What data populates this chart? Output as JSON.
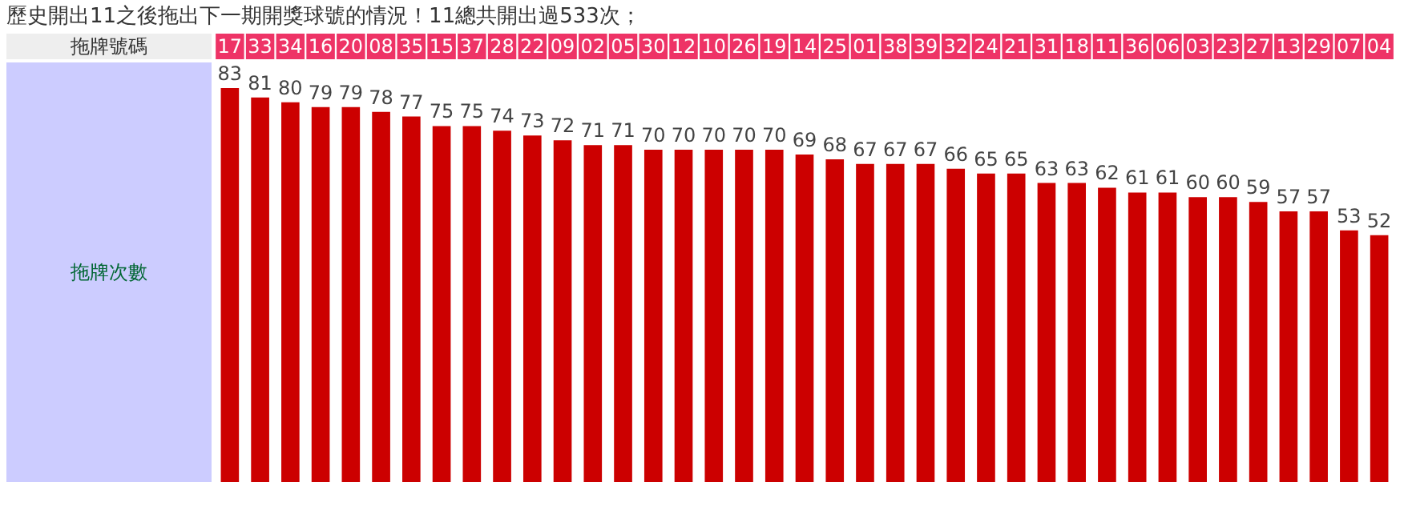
{
  "chart_data": {
    "type": "bar",
    "title": "歷史開出11之後拖出下一期開獎球號的情況！11總共開出過533次；",
    "xlabel": "拖牌號碼",
    "ylabel": "拖牌次數",
    "categories": [
      "17",
      "33",
      "34",
      "16",
      "20",
      "08",
      "35",
      "15",
      "37",
      "28",
      "22",
      "09",
      "02",
      "05",
      "30",
      "12",
      "10",
      "26",
      "19",
      "14",
      "25",
      "01",
      "38",
      "39",
      "32",
      "24",
      "21",
      "31",
      "18",
      "11",
      "36",
      "06",
      "03",
      "23",
      "27",
      "13",
      "29",
      "07",
      "04"
    ],
    "series": [
      {
        "color": "#cc0000",
        "values": [
          83,
          81,
          80,
          79,
          79,
          78,
          77,
          75,
          75,
          74,
          73,
          72,
          71,
          71,
          70,
          70,
          70,
          70,
          70,
          69,
          68,
          67,
          67,
          67,
          66,
          65,
          65,
          63,
          63,
          62,
          61,
          61,
          60,
          60,
          59,
          57,
          57,
          53,
          52
        ]
      }
    ],
    "data_labels": true
  }
}
